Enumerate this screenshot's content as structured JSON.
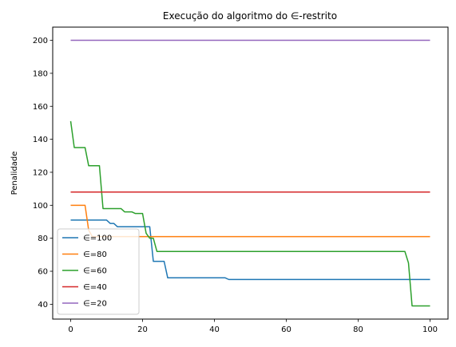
{
  "chart_data": {
    "type": "line",
    "title": "Execução do algoritmo do ∈-restrito",
    "xlabel": "",
    "ylabel": "Penalidade",
    "xlim": [
      -5,
      105
    ],
    "ylim": [
      31,
      208
    ],
    "xticks": [
      0,
      20,
      40,
      60,
      80,
      100
    ],
    "yticks": [
      40,
      60,
      80,
      100,
      120,
      140,
      160,
      180,
      200
    ],
    "grid": false,
    "legend_position": "lower-left",
    "series": [
      {
        "name": "∈=100",
        "color": "#1f77b4",
        "x": [
          0,
          4,
          5,
          10,
          11,
          12,
          13,
          21,
          22,
          23,
          26,
          27,
          43,
          44,
          100
        ],
        "y": [
          91,
          91,
          91,
          91,
          89,
          89,
          87,
          87,
          87,
          66,
          66,
          56,
          56,
          55,
          55
        ]
      },
      {
        "name": "∈=80",
        "color": "#ff7f0e",
        "x": [
          0,
          1,
          2,
          3,
          4,
          5,
          6,
          100
        ],
        "y": [
          100,
          100,
          100,
          100,
          100,
          85,
          81,
          81
        ]
      },
      {
        "name": "∈=60",
        "color": "#2ca02c",
        "x": [
          0,
          1,
          2,
          3,
          4,
          5,
          6,
          7,
          8,
          9,
          10,
          11,
          12,
          13,
          14,
          15,
          16,
          17,
          18,
          19,
          20,
          21,
          22,
          23,
          24,
          25,
          90,
          93,
          94,
          95,
          100
        ],
        "y": [
          151,
          135,
          135,
          135,
          135,
          124,
          124,
          124,
          124,
          98,
          98,
          98,
          98,
          98,
          98,
          96,
          96,
          96,
          95,
          95,
          95,
          83,
          80,
          80,
          72,
          72,
          72,
          72,
          65,
          39,
          39
        ]
      },
      {
        "name": "∈=40",
        "color": "#d62728",
        "x": [
          0,
          100
        ],
        "y": [
          108,
          108
        ]
      },
      {
        "name": "∈=20",
        "color": "#9467bd",
        "x": [
          0,
          100
        ],
        "y": [
          200,
          200
        ]
      }
    ]
  }
}
